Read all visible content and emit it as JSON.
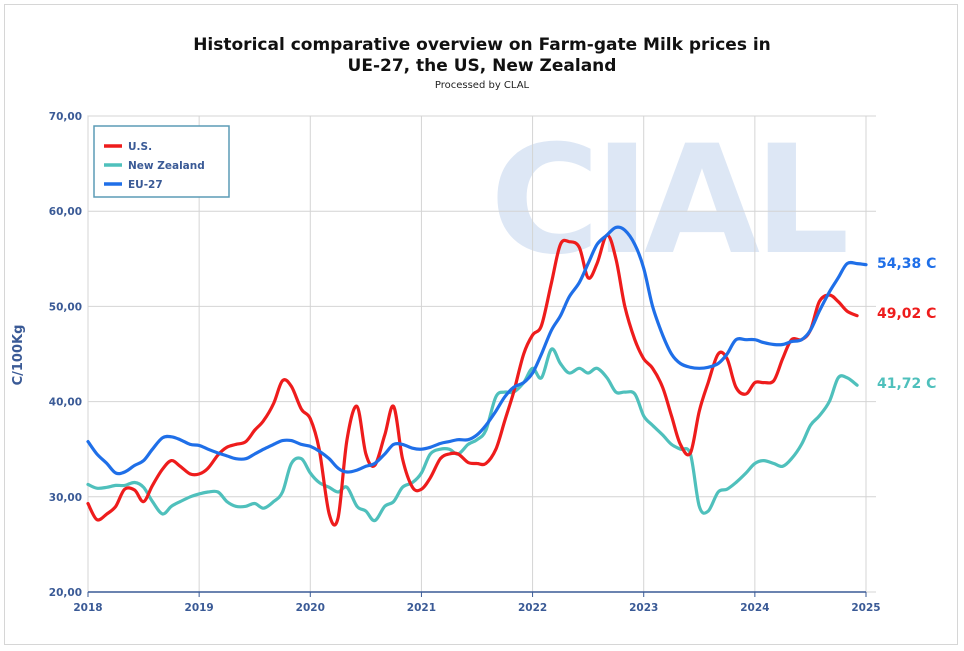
{
  "chart_data": {
    "type": "line",
    "title_line1": "Historical comparative overview on Farm-gate Milk prices in",
    "title_line2": "UE-27, the US, New Zealand",
    "subtitle": "Processed by CLAL",
    "watermark": "CIAL",
    "ylabel": "C/100Kg",
    "ylim": [
      20,
      70
    ],
    "yticks": [
      "20,00",
      "30,00",
      "40,00",
      "50,00",
      "60,00",
      "70,00"
    ],
    "xlim": [
      2018,
      2025
    ],
    "xticks": [
      "2018",
      "2019",
      "2020",
      "2021",
      "2022",
      "2023",
      "2024",
      "2025"
    ],
    "grid": true,
    "legend_position": "top-left",
    "series": [
      {
        "name": "U.S.",
        "color": "#ee1c1c",
        "end_label": "49,02 C",
        "x": [
          2018.0,
          2018.08,
          2018.17,
          2018.25,
          2018.33,
          2018.42,
          2018.5,
          2018.58,
          2018.67,
          2018.75,
          2018.83,
          2018.92,
          2019.0,
          2019.08,
          2019.17,
          2019.25,
          2019.33,
          2019.42,
          2019.5,
          2019.58,
          2019.67,
          2019.75,
          2019.83,
          2019.92,
          2020.0,
          2020.08,
          2020.17,
          2020.25,
          2020.33,
          2020.42,
          2020.5,
          2020.58,
          2020.67,
          2020.75,
          2020.83,
          2020.92,
          2021.0,
          2021.08,
          2021.17,
          2021.25,
          2021.33,
          2021.42,
          2021.5,
          2021.58,
          2021.67,
          2021.75,
          2021.83,
          2021.92,
          2022.0,
          2022.08,
          2022.17,
          2022.25,
          2022.33,
          2022.42,
          2022.5,
          2022.58,
          2022.67,
          2022.75,
          2022.83,
          2022.92,
          2023.0,
          2023.08,
          2023.17,
          2023.25,
          2023.33,
          2023.42,
          2023.5,
          2023.58,
          2023.67,
          2023.75,
          2023.83,
          2023.92,
          2024.0,
          2024.08,
          2024.17,
          2024.25,
          2024.33,
          2024.42,
          2024.5,
          2024.58,
          2024.67,
          2024.75,
          2024.83,
          2024.92
        ],
        "values": [
          29.3,
          27.6,
          28.2,
          29.0,
          30.8,
          30.7,
          29.5,
          31.2,
          32.9,
          33.8,
          33.2,
          32.4,
          32.4,
          33.0,
          34.4,
          35.2,
          35.5,
          35.8,
          37.0,
          38.0,
          39.8,
          42.2,
          41.6,
          39.2,
          38.2,
          35.0,
          28.2,
          27.8,
          36.0,
          39.5,
          34.5,
          33.3,
          36.5,
          39.5,
          34.0,
          31.0,
          30.8,
          32.0,
          34.0,
          34.5,
          34.5,
          33.6,
          33.5,
          33.5,
          35.0,
          38.0,
          41.0,
          45.0,
          47.0,
          48.0,
          52.5,
          56.5,
          56.8,
          56.2,
          53.0,
          54.5,
          57.5,
          55.0,
          50.0,
          46.5,
          44.5,
          43.5,
          41.5,
          38.5,
          35.5,
          34.6,
          39.0,
          42.0,
          45.0,
          44.5,
          41.5,
          40.8,
          42.0,
          42.0,
          42.2,
          44.5,
          46.5,
          46.5,
          47.5,
          50.5,
          51.2,
          50.5,
          49.5,
          49.02
        ]
      },
      {
        "name": "New Zealand",
        "color": "#4fc0bc",
        "end_label": "41,72 C",
        "x": [
          2018.0,
          2018.08,
          2018.17,
          2018.25,
          2018.33,
          2018.42,
          2018.5,
          2018.58,
          2018.67,
          2018.75,
          2018.83,
          2018.92,
          2019.0,
          2019.08,
          2019.17,
          2019.25,
          2019.33,
          2019.42,
          2019.5,
          2019.58,
          2019.67,
          2019.75,
          2019.83,
          2019.92,
          2020.0,
          2020.08,
          2020.17,
          2020.25,
          2020.33,
          2020.42,
          2020.5,
          2020.58,
          2020.67,
          2020.75,
          2020.83,
          2020.92,
          2021.0,
          2021.08,
          2021.17,
          2021.25,
          2021.33,
          2021.42,
          2021.5,
          2021.58,
          2021.67,
          2021.75,
          2021.83,
          2021.92,
          2022.0,
          2022.08,
          2022.17,
          2022.25,
          2022.33,
          2022.42,
          2022.5,
          2022.58,
          2022.67,
          2022.75,
          2022.83,
          2022.92,
          2023.0,
          2023.08,
          2023.17,
          2023.25,
          2023.33,
          2023.42,
          2023.5,
          2023.58,
          2023.67,
          2023.75,
          2023.83,
          2023.92,
          2024.0,
          2024.08,
          2024.17,
          2024.25,
          2024.33,
          2024.42,
          2024.5,
          2024.58,
          2024.67,
          2024.75,
          2024.83,
          2024.92
        ],
        "values": [
          31.3,
          30.9,
          31.0,
          31.2,
          31.2,
          31.5,
          31.0,
          29.5,
          28.2,
          29.0,
          29.5,
          30.0,
          30.3,
          30.5,
          30.5,
          29.5,
          29.0,
          29.0,
          29.3,
          28.8,
          29.5,
          30.5,
          33.5,
          34.0,
          32.5,
          31.5,
          31.0,
          30.5,
          31.0,
          29.0,
          28.5,
          27.5,
          29.0,
          29.5,
          31.0,
          31.5,
          32.5,
          34.5,
          35.0,
          35.0,
          34.5,
          35.5,
          36.0,
          37.0,
          40.5,
          41.0,
          41.0,
          42.0,
          43.5,
          42.5,
          45.5,
          44.0,
          43.0,
          43.5,
          43.0,
          43.5,
          42.5,
          41.0,
          41.0,
          40.8,
          38.5,
          37.5,
          36.5,
          35.5,
          35.0,
          34.5,
          29.0,
          28.5,
          30.5,
          30.8,
          31.5,
          32.5,
          33.5,
          33.8,
          33.5,
          33.2,
          34.0,
          35.5,
          37.5,
          38.5,
          40.0,
          42.5,
          42.5,
          41.72
        ]
      },
      {
        "name": "EU-27",
        "color": "#1f6fe8",
        "end_label": "54,38 C",
        "x": [
          2018.0,
          2018.08,
          2018.17,
          2018.25,
          2018.33,
          2018.42,
          2018.5,
          2018.58,
          2018.67,
          2018.75,
          2018.83,
          2018.92,
          2019.0,
          2019.08,
          2019.17,
          2019.25,
          2019.33,
          2019.42,
          2019.5,
          2019.58,
          2019.67,
          2019.75,
          2019.83,
          2019.92,
          2020.0,
          2020.08,
          2020.17,
          2020.25,
          2020.33,
          2020.42,
          2020.5,
          2020.58,
          2020.67,
          2020.75,
          2020.83,
          2020.92,
          2021.0,
          2021.08,
          2021.17,
          2021.25,
          2021.33,
          2021.42,
          2021.5,
          2021.58,
          2021.67,
          2021.75,
          2021.83,
          2021.92,
          2022.0,
          2022.08,
          2022.17,
          2022.25,
          2022.33,
          2022.42,
          2022.5,
          2022.58,
          2022.67,
          2022.75,
          2022.83,
          2022.92,
          2023.0,
          2023.08,
          2023.17,
          2023.25,
          2023.33,
          2023.42,
          2023.5,
          2023.58,
          2023.67,
          2023.75,
          2023.83,
          2023.92,
          2024.0,
          2024.08,
          2024.17,
          2024.25,
          2024.33,
          2024.42,
          2024.5,
          2024.58,
          2024.67,
          2024.75,
          2024.83,
          2024.92,
          2025.0
        ],
        "values": [
          35.8,
          34.5,
          33.5,
          32.5,
          32.6,
          33.3,
          33.8,
          35.0,
          36.2,
          36.3,
          36.0,
          35.5,
          35.4,
          35.0,
          34.6,
          34.3,
          34.0,
          34.0,
          34.5,
          35.0,
          35.5,
          35.9,
          35.9,
          35.5,
          35.3,
          34.8,
          34.0,
          33.0,
          32.6,
          32.8,
          33.2,
          33.5,
          34.5,
          35.5,
          35.5,
          35.1,
          35.0,
          35.2,
          35.6,
          35.8,
          36.0,
          36.0,
          36.5,
          37.5,
          39.0,
          40.5,
          41.5,
          42.0,
          43.0,
          45.0,
          47.5,
          49.0,
          51.0,
          52.5,
          54.5,
          56.5,
          57.5,
          58.3,
          58.0,
          56.5,
          54.0,
          50.0,
          47.0,
          45.0,
          44.0,
          43.6,
          43.5,
          43.6,
          44.0,
          45.0,
          46.5,
          46.5,
          46.5,
          46.2,
          46.0,
          46.0,
          46.3,
          46.5,
          47.5,
          49.5,
          51.5,
          53.0,
          54.5,
          54.5,
          54.38
        ]
      }
    ]
  },
  "legend": {
    "items": [
      {
        "label": "U.S.",
        "color": "#ee1c1c"
      },
      {
        "label": "New Zealand",
        "color": "#4fc0bc"
      },
      {
        "label": "EU-27",
        "color": "#1f6fe8"
      }
    ]
  }
}
